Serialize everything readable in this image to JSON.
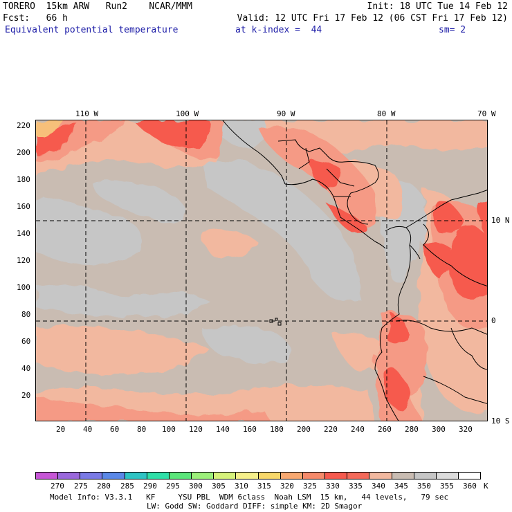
{
  "header": {
    "line1_left": "TORERO  15km ARW   Run2    NCAR/MMM",
    "line1_right": "Init: 18 UTC Tue 14 Feb 12",
    "line2_left": "Fcst:   66 h",
    "line2_right": "Valid: 12 UTC Fri 17 Feb 12 (06 CST Fri 17 Feb 12)",
    "field": "Equivalent potential temperature",
    "kindex": "at k-index =  44",
    "sm": "sm= 2"
  },
  "map": {
    "lon_labels": [
      "110 W",
      "100 W",
      "90 W",
      "80 W",
      "70 W"
    ],
    "lat_labels": [
      "10 N",
      "0",
      "10 S"
    ],
    "y_ticks": [
      "220",
      "200",
      "180",
      "160",
      "140",
      "120",
      "100",
      "80",
      "60",
      "40",
      "20"
    ],
    "x_ticks": [
      "20",
      "40",
      "60",
      "80",
      "100",
      "120",
      "140",
      "160",
      "180",
      "200",
      "220",
      "240",
      "260",
      "280",
      "300",
      "320"
    ],
    "colors": {
      "background": "#c9bcb2",
      "gray": "#c6c6c6",
      "light_salmon": "#f2b89f",
      "salmon": "#f59a85",
      "red": "#f65a4e",
      "orange": "#f7b870",
      "coast": "#000000"
    }
  },
  "colorbar": {
    "labels": [
      "270",
      "275",
      "280",
      "285",
      "290",
      "295",
      "300",
      "305",
      "310",
      "315",
      "320",
      "325",
      "330",
      "335",
      "340",
      "345",
      "350",
      "355",
      "360"
    ],
    "unit": "K",
    "colors": [
      "#c656d6",
      "#9a68dc",
      "#7a7ae6",
      "#5a88e8",
      "#2ec4c4",
      "#2ee0a8",
      "#5ae67a",
      "#9cf07a",
      "#d6f27a",
      "#f6f08a",
      "#f8d86a",
      "#f8a870",
      "#f68a6a",
      "#f65a4e",
      "#f46a5a",
      "#f2b89f",
      "#c9bcb2",
      "#c6c6c6",
      "#dcdcdc",
      "#ffffff"
    ]
  },
  "footer": {
    "line1": "Model Info: V3.3.1   KF     YSU PBL  WDM 6class  Noah LSM  15 km,   44 levels,   79 sec",
    "line2": "LW: Godd SW: Goddard DIFF: simple KM: 2D Smagor"
  }
}
